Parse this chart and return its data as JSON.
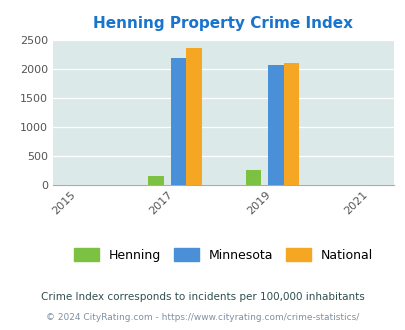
{
  "title": "Henning Property Crime Index",
  "title_color": "#1874CD",
  "years": [
    2015,
    2017,
    2019,
    2021
  ],
  "bar_years": [
    2017,
    2019
  ],
  "henning_values": [
    150,
    255
  ],
  "minnesota_values": [
    2185,
    2065
  ],
  "national_values": [
    2355,
    2100
  ],
  "henning_color": "#7DC142",
  "minnesota_color": "#4A90D9",
  "national_color": "#F5A623",
  "ylim": [
    0,
    2500
  ],
  "yticks": [
    0,
    500,
    1000,
    1500,
    2000,
    2500
  ],
  "bg_color": "#DCE9E9",
  "bar_width": 0.32,
  "legend_labels": [
    "Henning",
    "Minnesota",
    "National"
  ],
  "footnote1": "Crime Index corresponds to incidents per 100,000 inhabitants",
  "footnote2": "© 2024 CityRating.com - https://www.cityrating.com/crime-statistics/",
  "footnote1_color": "#2F4F4F",
  "footnote2_color": "#8090A0"
}
